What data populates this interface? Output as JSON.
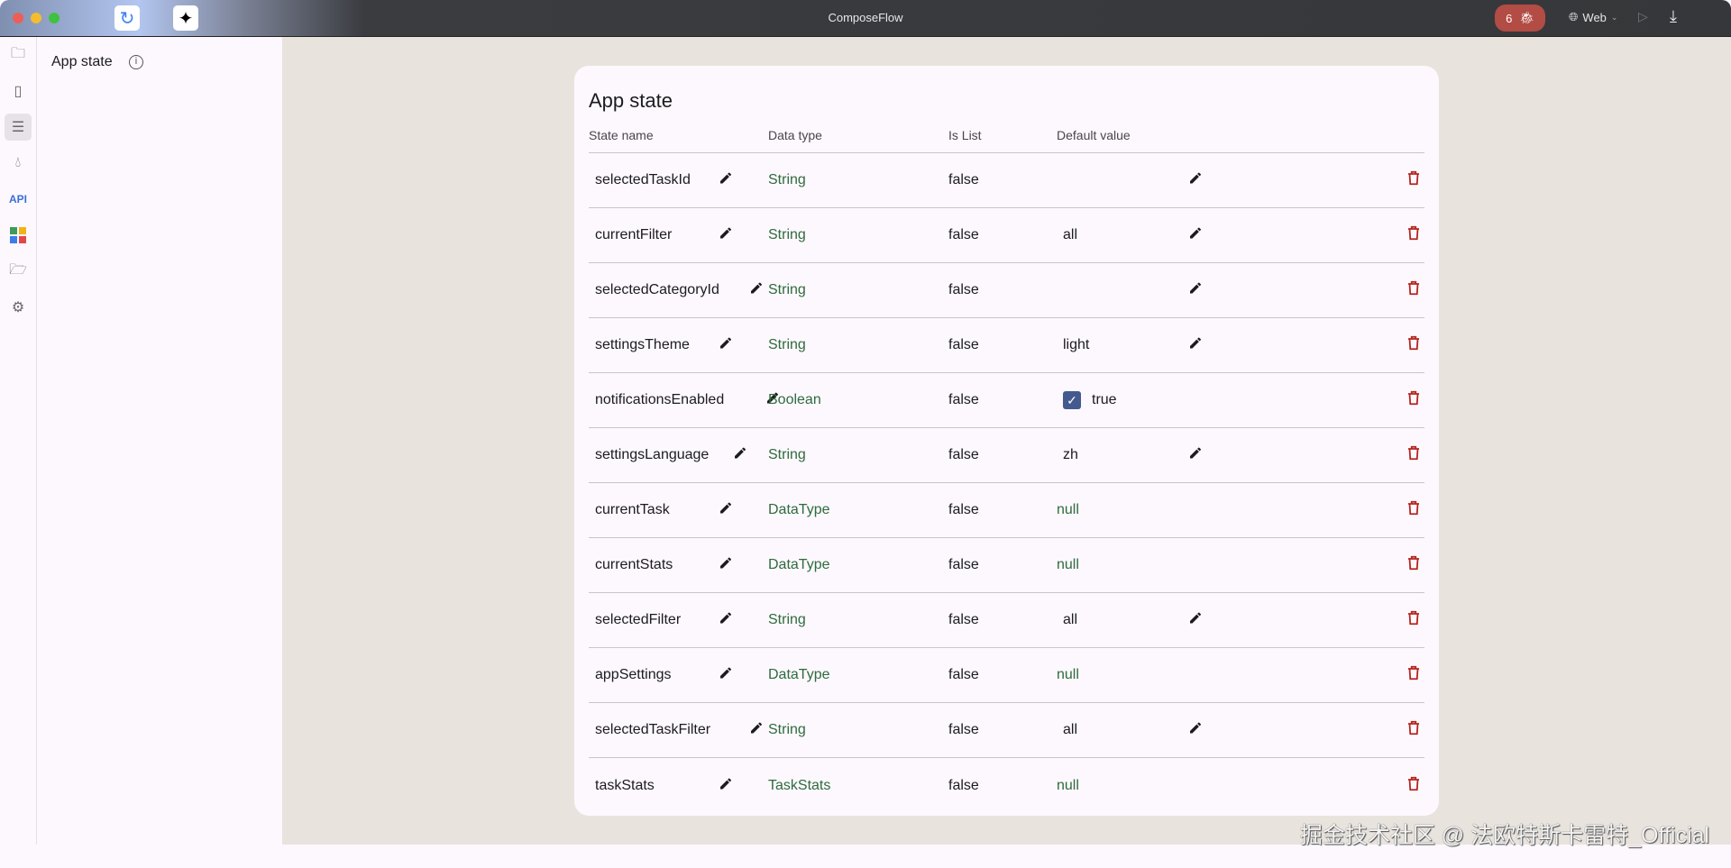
{
  "window": {
    "title": "ComposeFlow",
    "issues_count": "6",
    "target": "Web"
  },
  "sidebar": {
    "items": [
      {
        "icon": "folder-edit-icon"
      },
      {
        "icon": "layout-panel-icon"
      },
      {
        "icon": "database-icon",
        "active": true
      },
      {
        "icon": "theme-drop-icon"
      },
      {
        "icon": "api-icon",
        "label": "API"
      },
      {
        "icon": "assets-grid-icon"
      },
      {
        "icon": "folder-file-icon"
      },
      {
        "icon": "gear-icon"
      }
    ]
  },
  "panel": {
    "title": "App state"
  },
  "card": {
    "title": "App state",
    "headers": {
      "name": "State name",
      "type": "Data type",
      "is_list": "Is List",
      "default": "Default value"
    },
    "rows": [
      {
        "name": "selectedTaskId",
        "type": "String",
        "is_list": "false",
        "default": "",
        "kind": "text",
        "editable": true
      },
      {
        "name": "currentFilter",
        "type": "String",
        "is_list": "false",
        "default": "all",
        "kind": "text",
        "editable": true
      },
      {
        "name": "selectedCategoryId",
        "type": "String",
        "is_list": "false",
        "default": "",
        "kind": "text",
        "editable": true
      },
      {
        "name": "settingsTheme",
        "type": "String",
        "is_list": "false",
        "default": "light",
        "kind": "text",
        "editable": true
      },
      {
        "name": "notificationsEnabled",
        "type": "Boolean",
        "is_list": "false",
        "default": "true",
        "kind": "checkbox",
        "checked": true,
        "editable": false
      },
      {
        "name": "settingsLanguage",
        "type": "String",
        "is_list": "false",
        "default": "zh",
        "kind": "text",
        "editable": true
      },
      {
        "name": "currentTask",
        "type": "DataType",
        "is_list": "false",
        "default": "null",
        "kind": "null",
        "editable": false
      },
      {
        "name": "currentStats",
        "type": "DataType",
        "is_list": "false",
        "default": "null",
        "kind": "null",
        "editable": false
      },
      {
        "name": "selectedFilter",
        "type": "String",
        "is_list": "false",
        "default": "all",
        "kind": "text",
        "editable": true
      },
      {
        "name": "appSettings",
        "type": "DataType",
        "is_list": "false",
        "default": "null",
        "kind": "null",
        "editable": false
      },
      {
        "name": "selectedTaskFilter",
        "type": "String",
        "is_list": "false",
        "default": "all",
        "kind": "text",
        "editable": true
      },
      {
        "name": "taskStats",
        "type": "TaskStats",
        "is_list": "false",
        "default": "null",
        "kind": "null",
        "editable": false
      }
    ]
  },
  "colors": {
    "type_text": "#2e6b3e",
    "delete": "#b3261e",
    "badge": "#b24c44",
    "checkbox": "#435a8f"
  },
  "watermark": "掘金技术社区 @ 法欧特斯卡雷特_Official"
}
